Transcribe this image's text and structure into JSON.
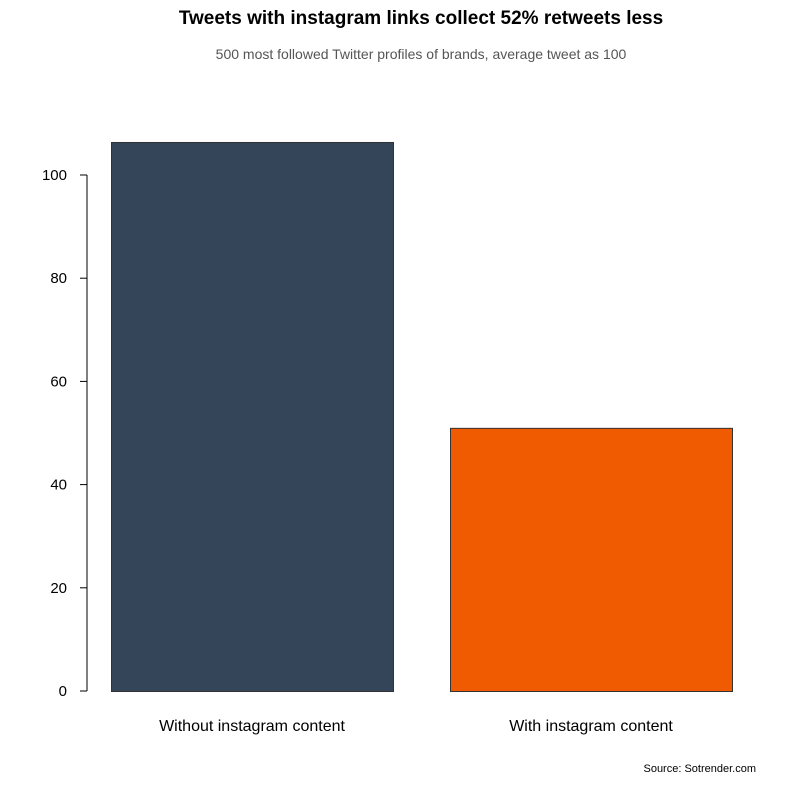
{
  "chart_data": {
    "type": "bar",
    "title": "Tweets with instagram links collect 52% retweets less",
    "subtitle": "500 most followed Twitter profiles of brands, average tweet as 100",
    "source": "Source: Sotrender.com",
    "categories": [
      "Without instagram content",
      "With instagram content"
    ],
    "values": [
      106.4,
      51.0
    ],
    "colors": [
      "#354559",
      "#f05a00"
    ],
    "ylim": [
      0,
      100
    ],
    "yticks": [
      0,
      20,
      40,
      60,
      80,
      100
    ],
    "xlabel": "",
    "ylabel": "",
    "grid": false
  }
}
